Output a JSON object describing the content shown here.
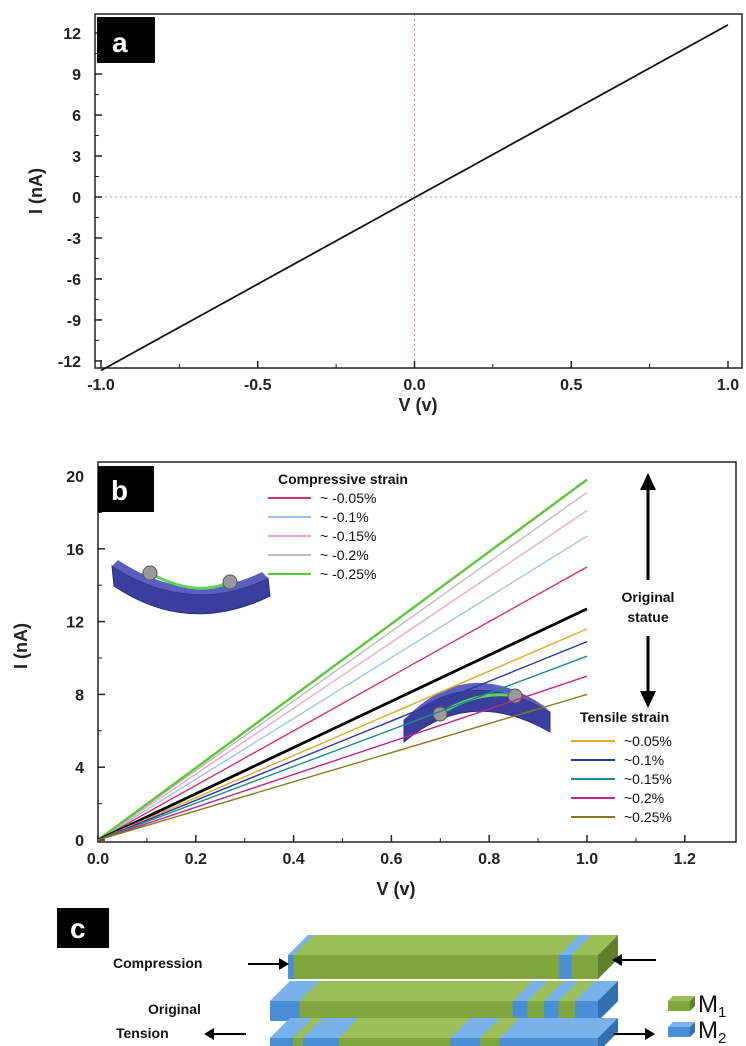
{
  "chart_data": [
    {
      "panel": "a",
      "type": "line",
      "xlabel": "V (v)",
      "ylabel": "I (nA)",
      "xlim": [
        -1.0,
        1.0
      ],
      "ylim": [
        -14,
        14
      ],
      "xticks": [
        "-1.0",
        "-0.5",
        "0.0",
        "0.5",
        "1.0"
      ],
      "yticks": [
        "-12",
        "-9",
        "-6",
        "-3",
        "0",
        "3",
        "6",
        "9",
        "12"
      ],
      "series": [
        {
          "x": [
            -1.0,
            1.0
          ],
          "y": [
            -12.7,
            12.6
          ],
          "color": "#111111"
        }
      ],
      "reference_lines": {
        "x0": true,
        "y0": true,
        "color": "#e08a8a"
      }
    },
    {
      "panel": "b",
      "type": "line",
      "xlabel": "V (v)",
      "ylabel": "I (nA)",
      "xlim": [
        0.0,
        1.3
      ],
      "ylim": [
        0,
        21
      ],
      "xticks": [
        "0.0",
        "0.2",
        "0.4",
        "0.6",
        "0.8",
        "1.0",
        "1.2"
      ],
      "yticks": [
        "0",
        "4",
        "8",
        "12",
        "16",
        "20"
      ],
      "legend_compressive_title": "Compressive strain",
      "legend_tensile_title": "Tensile strain",
      "annotation": [
        "Original",
        "statue"
      ],
      "series": [
        {
          "name": "~ -0.05%",
          "group": "compressive",
          "x": [
            0,
            1.0
          ],
          "y": [
            0,
            15.0
          ],
          "color": "#d6336c"
        },
        {
          "name": "~ -0.1%",
          "group": "compressive",
          "x": [
            0,
            1.0
          ],
          "y": [
            0,
            16.7
          ],
          "color": "#9ec3ea"
        },
        {
          "name": "~ -0.15%",
          "group": "compressive",
          "x": [
            0,
            1.0
          ],
          "y": [
            0,
            18.1
          ],
          "color": "#f0a6c8"
        },
        {
          "name": "~ -0.2%",
          "group": "compressive",
          "x": [
            0,
            1.0
          ],
          "y": [
            0,
            19.1
          ],
          "color": "#bdbdbd"
        },
        {
          "name": "~ -0.25%",
          "group": "compressive",
          "x": [
            0,
            1.0
          ],
          "y": [
            0,
            19.8
          ],
          "color": "#5fc53a"
        },
        {
          "name": "",
          "group": "original",
          "x": [
            0,
            1.0
          ],
          "y": [
            0,
            12.7
          ],
          "color": "#000000"
        },
        {
          "name": "~0.05%",
          "group": "tensile",
          "x": [
            0,
            1.0
          ],
          "y": [
            0,
            11.6
          ],
          "color": "#e3a92b"
        },
        {
          "name": "~0.1%",
          "group": "tensile",
          "x": [
            0,
            1.0
          ],
          "y": [
            0,
            10.9
          ],
          "color": "#2b3a9e"
        },
        {
          "name": "~0.15%",
          "group": "tensile",
          "x": [
            0,
            1.0
          ],
          "y": [
            0,
            10.1
          ],
          "color": "#1f8b8b"
        },
        {
          "name": "~0.2%",
          "group": "tensile",
          "x": [
            0,
            1.0
          ],
          "y": [
            0,
            9.0
          ],
          "color": "#c2258c"
        },
        {
          "name": "~0.25%",
          "group": "tensile",
          "x": [
            0,
            1.0
          ],
          "y": [
            0,
            8.0
          ],
          "color": "#8a7a1a"
        }
      ]
    }
  ],
  "panel_labels": {
    "a": "a",
    "b": "b",
    "c": "c"
  },
  "schematic": {
    "labels": {
      "compression": "Compression",
      "original": "Original",
      "tension": "Tension"
    },
    "legend": {
      "m1": "M",
      "m1_sub": "1",
      "m2": "M",
      "m2_sub": "2"
    },
    "colors": {
      "m1": "#7fa63d",
      "m1_top": "#9bc05a",
      "m1_side": "#5f7f2a",
      "m2": "#4a8fd6",
      "m2_top": "#79b2ea",
      "m2_side": "#326fb0"
    }
  }
}
